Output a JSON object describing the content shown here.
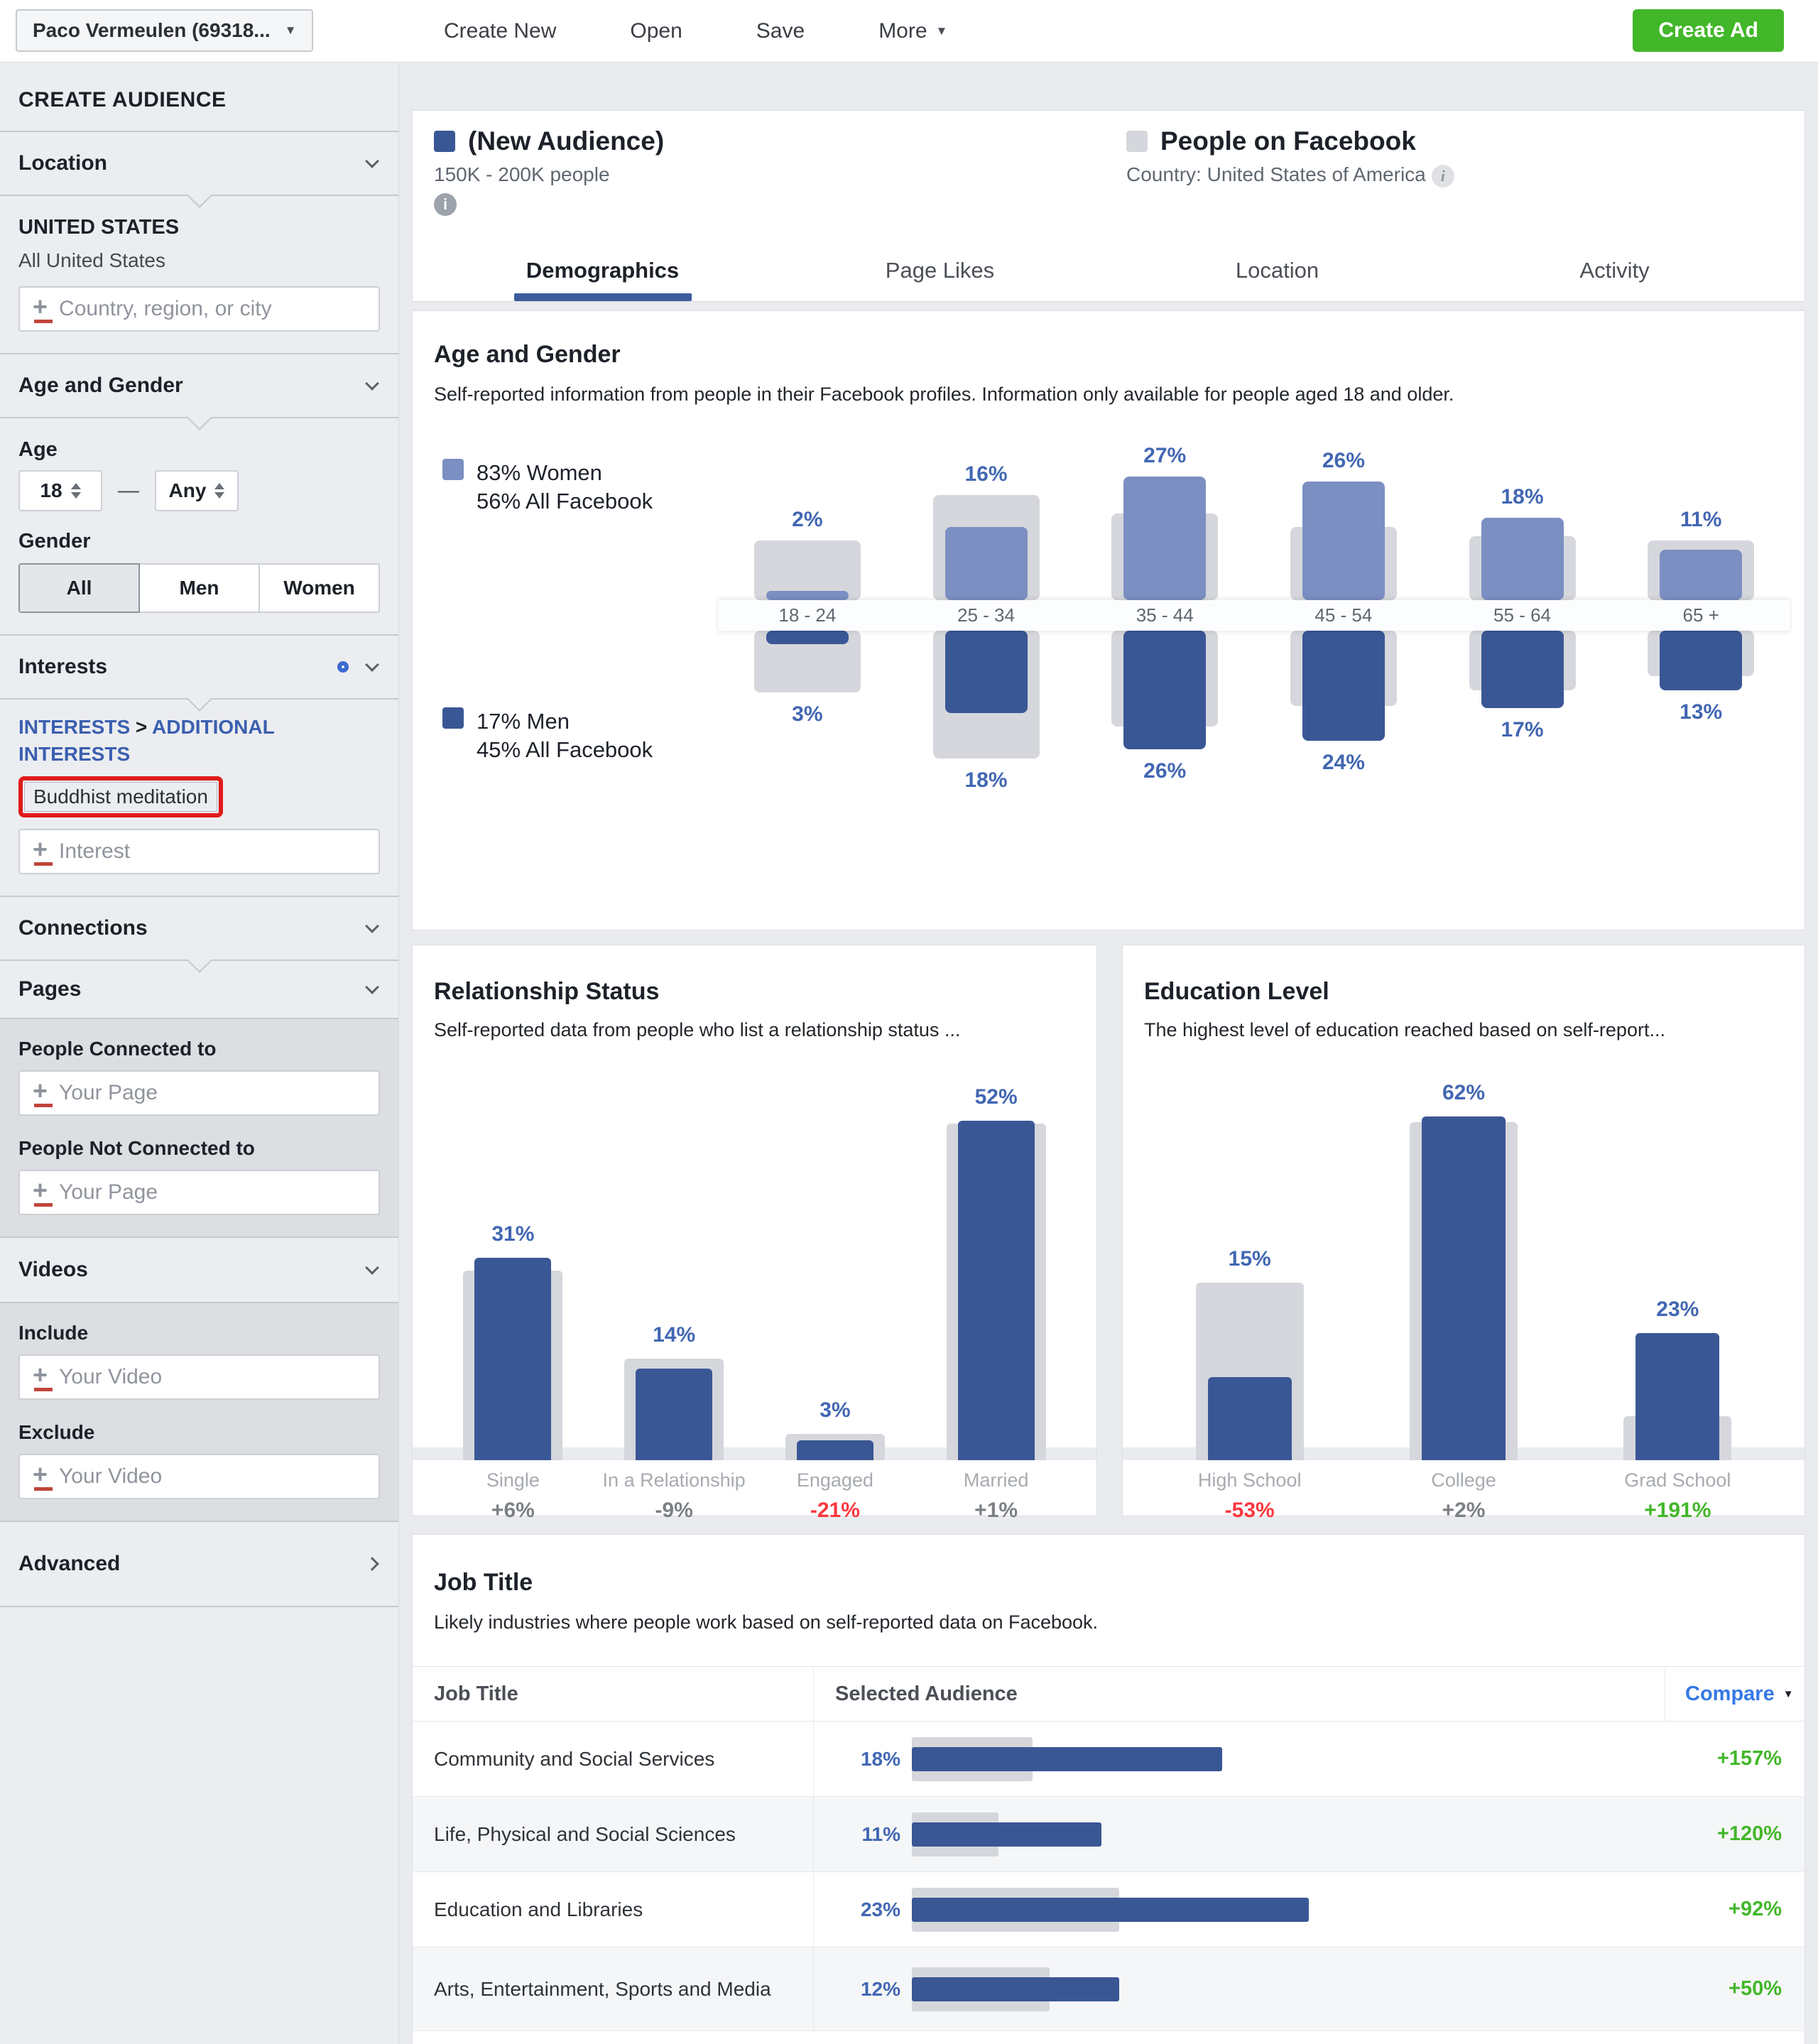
{
  "toolbar": {
    "account": "Paco Vermeulen (69318...",
    "create_new": "Create New",
    "open": "Open",
    "save": "Save",
    "more": "More",
    "create_ad": "Create Ad"
  },
  "sidebar": {
    "title": "CREATE AUDIENCE",
    "location": {
      "label": "Location",
      "country": "UNITED STATES",
      "scope": "All United States",
      "placeholder": "Country, region, or city"
    },
    "age_gender": {
      "label": "Age and Gender",
      "age_label": "Age",
      "age_min": "18",
      "dash": "—",
      "age_max": "Any",
      "gender_label": "Gender",
      "options": [
        "All",
        "Men",
        "Women"
      ],
      "selected": "All"
    },
    "interests": {
      "label": "Interests",
      "breadcrumb": {
        "path1": "INTERESTS",
        "separator": ">",
        "path2": "ADDITIONAL INTERESTS"
      },
      "selected_interest": "Buddhist meditation",
      "placeholder": "Interest"
    },
    "connections": {
      "label": "Connections"
    },
    "pages": {
      "label": "Pages",
      "connected_label": "People Connected to",
      "connected_placeholder": "Your Page",
      "not_connected_label": "People Not Connected to",
      "not_connected_placeholder": "Your Page"
    },
    "videos": {
      "label": "Videos",
      "include_label": "Include",
      "include_placeholder": "Your Video",
      "exclude_label": "Exclude",
      "exclude_placeholder": "Your Video"
    },
    "advanced": {
      "label": "Advanced"
    }
  },
  "header": {
    "audience": {
      "name": "(New Audience)",
      "size": "150K - 200K people"
    },
    "benchmark": {
      "name": "People on Facebook",
      "scope": "Country: United States of America"
    }
  },
  "tabs": [
    {
      "label": "Demographics",
      "active": true
    },
    {
      "label": "Page Likes",
      "active": false
    },
    {
      "label": "Location",
      "active": false
    },
    {
      "label": "Activity",
      "active": false
    }
  ],
  "icons": {
    "dropdown_caret": "▼",
    "info": "i",
    "add": "+",
    "compare_caret": "▼"
  },
  "colors": {
    "audience_blue": "#3a5795",
    "women_blue": "#7c8fc2",
    "facebook_gray": "#d5d7dc",
    "label_blue": "#4267b2",
    "positive_green": "#42b72a",
    "negative_red": "#fa383e",
    "create_ad_green": "#42b72a",
    "accent_blue": "#3e5b9c",
    "highlight_red": "#e11b1b"
  },
  "chart_data": [
    {
      "id": "age_gender",
      "type": "bar",
      "title": "Age and Gender",
      "subtitle": "Self-reported information from people in their Facebook profiles. Information only available for people aged 18 and older.",
      "categories": [
        "18 - 24",
        "25 - 34",
        "35 - 44",
        "45 - 54",
        "55 - 64",
        "65 +"
      ],
      "legend": {
        "women": {
          "pct": "83% Women",
          "all": "56% All Facebook"
        },
        "men": {
          "pct": "17% Men",
          "all": "45% All Facebook"
        }
      },
      "series": [
        {
          "name": "Women (Selected Audience)",
          "values": [
            2,
            16,
            27,
            26,
            18,
            11
          ]
        },
        {
          "name": "Women (All Facebook)",
          "values": [
            13,
            23,
            19,
            16,
            14,
            13
          ]
        },
        {
          "name": "Men (Selected Audience)",
          "values": [
            3,
            18,
            26,
            24,
            17,
            13
          ]
        },
        {
          "name": "Men (All Facebook)",
          "values": [
            13.5,
            28,
            21,
            16.5,
            13,
            10
          ]
        }
      ],
      "unit": "%",
      "layout": "butterfly, women above axis, men below axis, gray Facebook bars behind blue audience bars"
    },
    {
      "id": "relationship",
      "type": "bar",
      "title": "Relationship Status",
      "subtitle": "Self-reported data from people who list a relationship status ...",
      "categories": [
        "Single",
        "In a Relationship",
        "Engaged",
        "Married"
      ],
      "series": [
        {
          "name": "Selected Audience",
          "values": [
            31,
            14,
            3,
            52
          ]
        },
        {
          "name": "All Facebook",
          "values": [
            29,
            15.5,
            4,
            51.5
          ]
        }
      ],
      "deltas": [
        {
          "text": "+6%",
          "tone": "neutral"
        },
        {
          "text": "-9%",
          "tone": "neutral"
        },
        {
          "text": "-21%",
          "tone": "negative"
        },
        {
          "text": "+1%",
          "tone": "neutral"
        }
      ],
      "unit": "%"
    },
    {
      "id": "education",
      "type": "bar",
      "title": "Education Level",
      "subtitle": "The highest level of education reached based on self-report...",
      "categories": [
        "High School",
        "College",
        "Grad School"
      ],
      "series": [
        {
          "name": "Selected Audience",
          "values": [
            15,
            62,
            23
          ]
        },
        {
          "name": "All Facebook",
          "values": [
            32,
            61,
            8
          ]
        }
      ],
      "deltas": [
        {
          "text": "-53%",
          "tone": "negative"
        },
        {
          "text": "+2%",
          "tone": "neutral"
        },
        {
          "text": "+191%",
          "tone": "positive"
        }
      ],
      "unit": "%"
    },
    {
      "id": "job_title",
      "type": "table",
      "title": "Job Title",
      "subtitle": "Likely industries where people work based on self-reported data on Facebook.",
      "columns": [
        "Job Title",
        "Selected Audience",
        "Compare"
      ],
      "rows": [
        {
          "label": "Community and Social Services",
          "pct": 18,
          "pct_text": "18%",
          "fb_pct": 7,
          "compare": "+157%",
          "tone": "positive"
        },
        {
          "label": "Life, Physical and Social Sciences",
          "pct": 11,
          "pct_text": "11%",
          "fb_pct": 5,
          "compare": "+120%",
          "tone": "positive"
        },
        {
          "label": "Education and Libraries",
          "pct": 23,
          "pct_text": "23%",
          "fb_pct": 12,
          "compare": "+92%",
          "tone": "positive"
        },
        {
          "label": "Arts, Entertainment, Sports and Media",
          "pct": 12,
          "pct_text": "12%",
          "fb_pct": 8,
          "compare": "+50%",
          "tone": "positive"
        }
      ]
    }
  ]
}
